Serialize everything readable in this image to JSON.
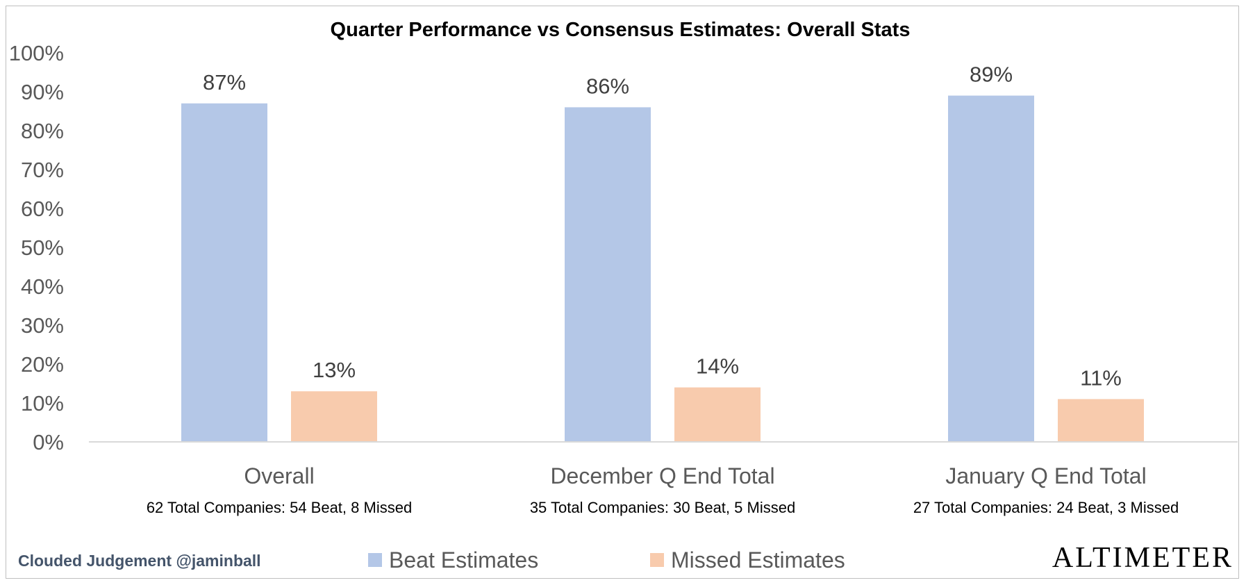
{
  "chart_data": {
    "type": "bar",
    "title": "Quarter Performance vs Consensus Estimates: Overall Stats",
    "categories": [
      "Overall",
      "December Q End Total",
      "January Q End Total"
    ],
    "category_subtitles": [
      "62 Total Companies: 54 Beat, 8 Missed",
      "35 Total Companies: 30 Beat, 5 Missed",
      "27 Total Companies: 24 Beat, 3 Missed"
    ],
    "series": [
      {
        "name": "Beat Estimates",
        "color": "#b4c7e7",
        "values": [
          87,
          86,
          89
        ],
        "labels": [
          "87%",
          "86%",
          "89%"
        ]
      },
      {
        "name": "Missed Estimates",
        "color": "#f8cbad",
        "values": [
          13,
          14,
          11
        ],
        "labels": [
          "13%",
          "14%",
          "11%"
        ]
      }
    ],
    "ylim": [
      0,
      100
    ],
    "y_ticks": [
      "0%",
      "10%",
      "20%",
      "30%",
      "40%",
      "50%",
      "60%",
      "70%",
      "80%",
      "90%",
      "100%"
    ],
    "grid": false,
    "legend_position": "bottom"
  },
  "footer": {
    "credit": "Clouded Judgement @jaminball",
    "brand": "ALTIMETER"
  }
}
